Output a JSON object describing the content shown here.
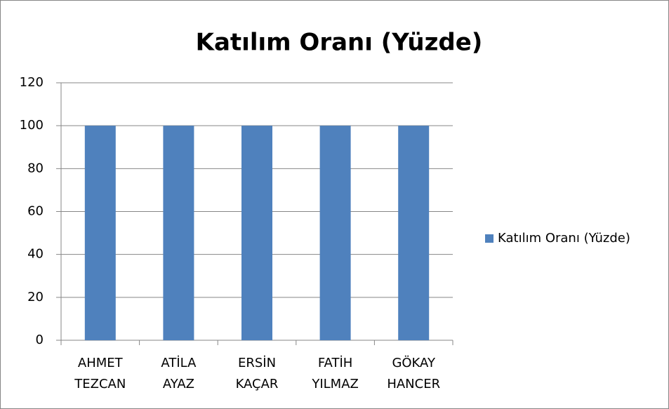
{
  "chart_data": {
    "type": "bar",
    "title": "Katılım Oranı (Yüzde)",
    "categories": [
      "AHMET TEZCAN",
      "ATİLA AYAZ",
      "ERSİN KAÇAR",
      "FATİH YILMAZ",
      "GÖKAY HANCER"
    ],
    "series": [
      {
        "name": "Katılım Oranı (Yüzde)",
        "color": "#4f81bd",
        "values": [
          100,
          100,
          100,
          100,
          100
        ]
      }
    ],
    "ylim": [
      0,
      120
    ],
    "yticks": [
      0,
      20,
      40,
      60,
      80,
      100,
      120
    ],
    "grid": true,
    "legend": "right"
  }
}
